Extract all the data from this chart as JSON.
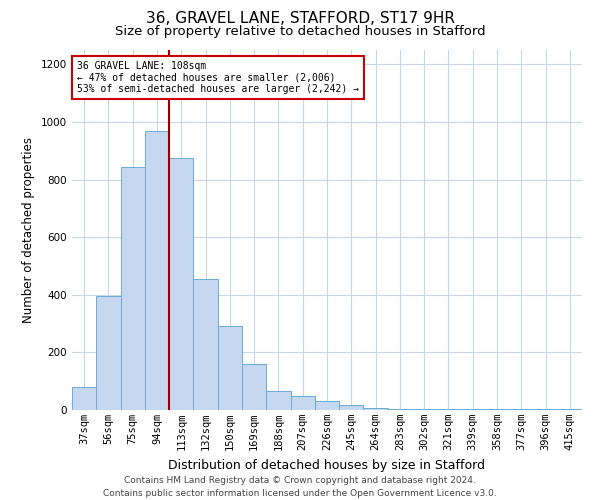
{
  "title_line1": "36, GRAVEL LANE, STAFFORD, ST17 9HR",
  "title_line2": "Size of property relative to detached houses in Stafford",
  "xlabel": "Distribution of detached houses by size in Stafford",
  "ylabel": "Number of detached properties",
  "categories": [
    "37sqm",
    "56sqm",
    "75sqm",
    "94sqm",
    "113sqm",
    "132sqm",
    "150sqm",
    "169sqm",
    "188sqm",
    "207sqm",
    "226sqm",
    "245sqm",
    "264sqm",
    "283sqm",
    "302sqm",
    "321sqm",
    "339sqm",
    "358sqm",
    "377sqm",
    "396sqm",
    "415sqm"
  ],
  "values": [
    80,
    395,
    845,
    970,
    875,
    455,
    290,
    160,
    65,
    47,
    30,
    18,
    7,
    5,
    5,
    5,
    5,
    5,
    5,
    5,
    5
  ],
  "bar_color": "#c5d8f0",
  "bar_edge_color": "#6aaad4",
  "vline_color": "#990000",
  "annotation_text": "36 GRAVEL LANE: 108sqm\n← 47% of detached houses are smaller (2,006)\n53% of semi-detached houses are larger (2,242) →",
  "annotation_box_color": "#ffffff",
  "annotation_box_edge": "#cc0000",
  "ylim": [
    0,
    1250
  ],
  "yticks": [
    0,
    200,
    400,
    600,
    800,
    1000,
    1200
  ],
  "footer": "Contains HM Land Registry data © Crown copyright and database right 2024.\nContains public sector information licensed under the Open Government Licence v3.0.",
  "bg_color": "#ffffff",
  "grid_color": "#c8d4e8",
  "title_fontsize": 11,
  "subtitle_fontsize": 9.5,
  "axis_label_fontsize": 8.5,
  "tick_fontsize": 7.5,
  "footer_fontsize": 6.5
}
